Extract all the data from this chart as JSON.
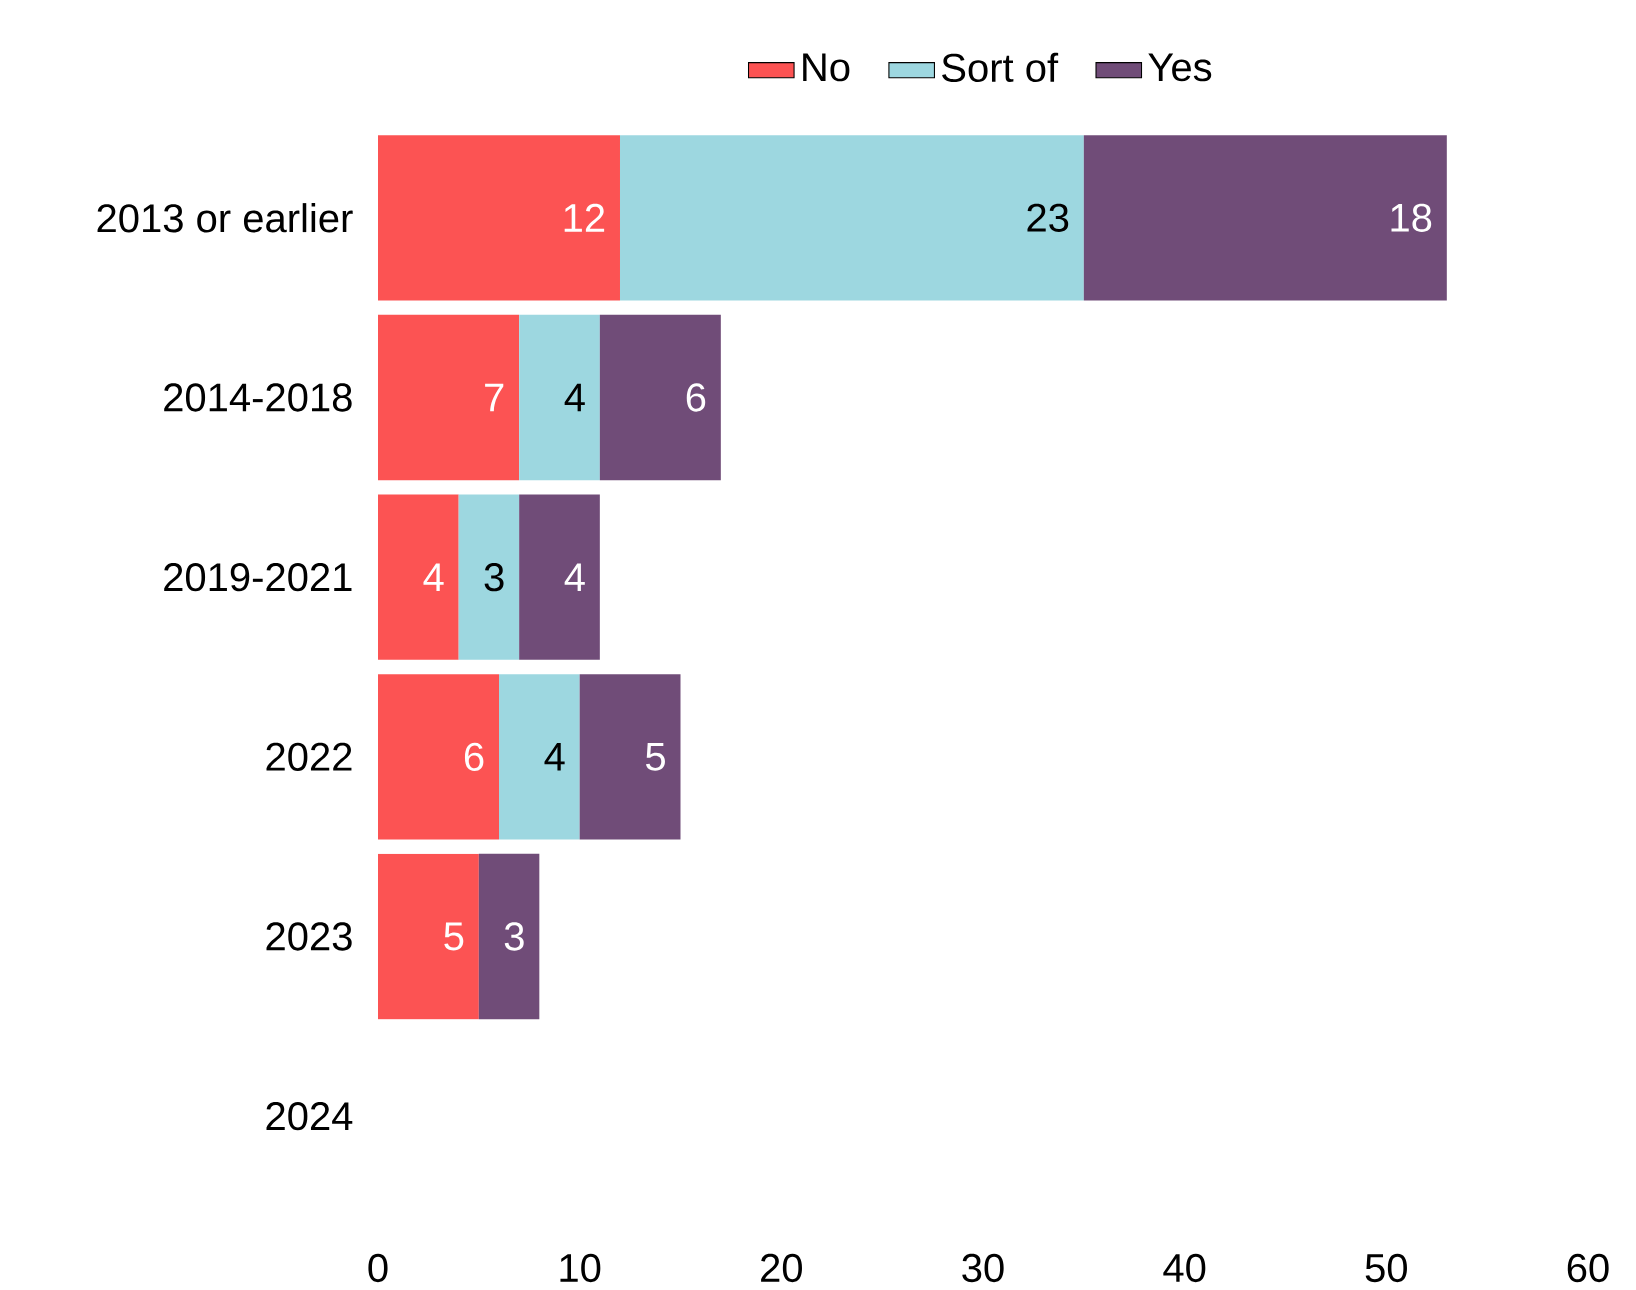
{
  "chart_data": {
    "type": "bar",
    "orientation": "horizontal",
    "stacked": true,
    "data_labels": true,
    "legend": "top",
    "grid": false,
    "categories": [
      "2013 or earlier",
      "2014-2018",
      "2019-2021",
      "2022",
      "2023",
      "2024"
    ],
    "series": [
      {
        "name": "No",
        "color": "#fc5353",
        "values": [
          12,
          7,
          4,
          6,
          5,
          null
        ]
      },
      {
        "name": "Sort of",
        "color": "#9dd7e0",
        "values": [
          23,
          4,
          3,
          4,
          null,
          null
        ]
      },
      {
        "name": "Yes",
        "color": "#704c78",
        "values": [
          18,
          6,
          4,
          5,
          3,
          null
        ]
      }
    ],
    "xlim": [
      0,
      60
    ],
    "xticks": [
      0,
      10,
      20,
      30,
      40,
      50,
      60
    ]
  }
}
